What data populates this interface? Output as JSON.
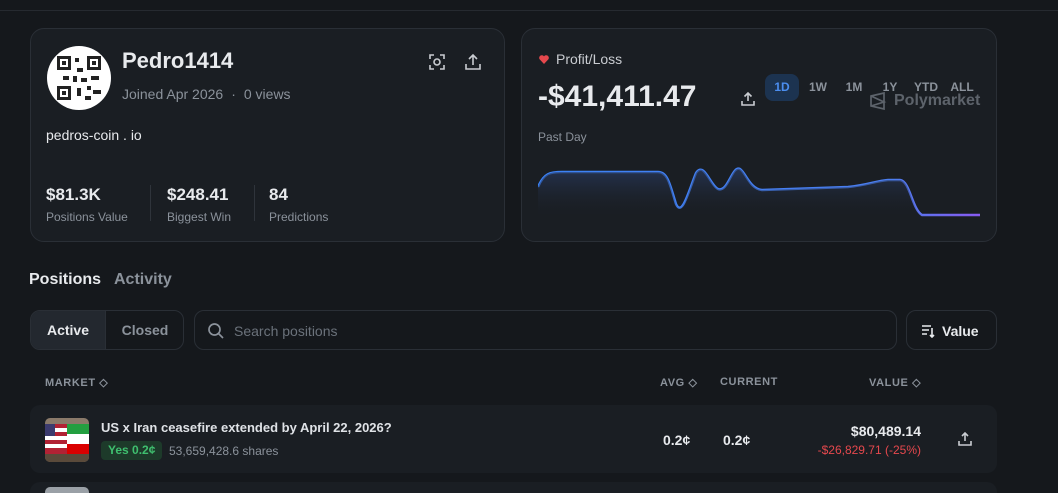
{
  "profile": {
    "name": "Pedro1414",
    "joined": "Joined Apr 2026",
    "views": "0 views",
    "website": "pedros-coin . io",
    "stats": [
      {
        "value": "$81.3K",
        "label": "Positions Value"
      },
      {
        "value": "$248.41",
        "label": "Biggest Win"
      },
      {
        "value": "84",
        "label": "Predictions"
      }
    ]
  },
  "pnl": {
    "label": "Profit/Loss",
    "value": "-$41,411.47",
    "period_label": "Past Day",
    "brand": "Polymarket",
    "ranges": [
      "1D",
      "1W",
      "1M",
      "1Y",
      "YTD",
      "ALL"
    ],
    "selected_range": "1D"
  },
  "tabs": [
    "Positions",
    "Activity"
  ],
  "filters": [
    "Active",
    "Closed"
  ],
  "search_placeholder": "Search positions",
  "sort_label": "Value",
  "table": {
    "columns": [
      "MARKET",
      "AVG",
      "CURRENT",
      "VALUE"
    ],
    "rows": [
      {
        "title": "US x Iran ceasefire extended by April 22, 2026?",
        "outcome": "Yes 0.2¢",
        "shares": "53,659,428.6 shares",
        "avg": "0.2¢",
        "current": "0.2¢",
        "value": "$80,489.14",
        "change": "-$26,829.71 (-25%)"
      }
    ]
  }
}
